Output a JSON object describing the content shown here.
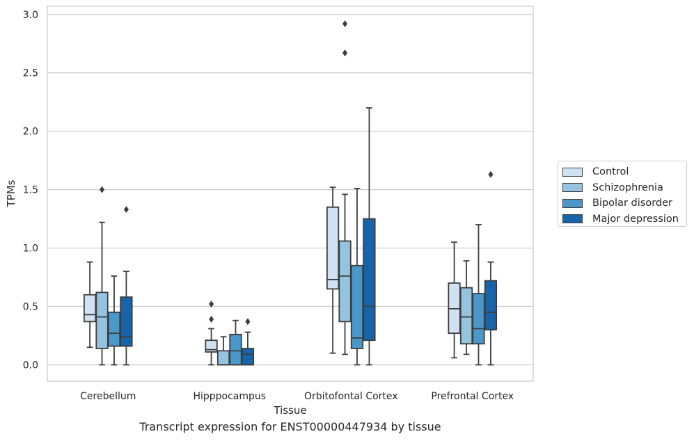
{
  "chart_data": {
    "type": "box",
    "caption": "Transcript expression for ENST00000447934 by tissue",
    "xlabel": "Tissue",
    "ylabel": "TPMs",
    "ylim": [
      -0.14,
      3.07
    ],
    "yticks": [
      "0.0",
      "0.5",
      "1.0",
      "1.5",
      "2.0",
      "2.5",
      "3.0"
    ],
    "grid": "horizontal",
    "legend_position": "right",
    "categories": [
      "Cerebellum",
      "Hipppocampus",
      "Orbitofontal Cortex",
      "Prefrontal Cortex"
    ],
    "series": [
      {
        "name": "Control",
        "color": "#d0e1f2",
        "boxes": [
          {
            "whislo": 0.15,
            "q1": 0.37,
            "med": 0.43,
            "q3": 0.6,
            "whishi": 0.88,
            "fliers": []
          },
          {
            "whislo": 0.0,
            "q1": 0.11,
            "med": 0.13,
            "q3": 0.21,
            "whishi": 0.31,
            "fliers": [
              0.39,
              0.52
            ]
          },
          {
            "whislo": 0.1,
            "q1": 0.65,
            "med": 0.73,
            "q3": 1.35,
            "whishi": 1.52,
            "fliers": []
          },
          {
            "whislo": 0.06,
            "q1": 0.27,
            "med": 0.48,
            "q3": 0.7,
            "whishi": 1.05,
            "fliers": []
          }
        ]
      },
      {
        "name": "Schizophrenia",
        "color": "#94c4df",
        "boxes": [
          {
            "whislo": 0.0,
            "q1": 0.14,
            "med": 0.41,
            "q3": 0.62,
            "whishi": 1.22,
            "fliers": [
              1.5
            ]
          },
          {
            "whislo": 0.0,
            "q1": 0.0,
            "med": 0.0,
            "q3": 0.12,
            "whishi": 0.24,
            "fliers": []
          },
          {
            "whislo": 0.09,
            "q1": 0.37,
            "med": 0.76,
            "q3": 1.06,
            "whishi": 1.46,
            "fliers": [
              2.67,
              2.92
            ]
          },
          {
            "whislo": 0.09,
            "q1": 0.18,
            "med": 0.41,
            "q3": 0.66,
            "whishi": 0.89,
            "fliers": []
          }
        ]
      },
      {
        "name": "Bipolar disorder",
        "color": "#4a98c9",
        "boxes": [
          {
            "whislo": 0.0,
            "q1": 0.16,
            "med": 0.27,
            "q3": 0.45,
            "whishi": 0.76,
            "fliers": []
          },
          {
            "whislo": 0.0,
            "q1": 0.0,
            "med": 0.12,
            "q3": 0.26,
            "whishi": 0.38,
            "fliers": []
          },
          {
            "whislo": 0.0,
            "q1": 0.14,
            "med": 0.23,
            "q3": 0.85,
            "whishi": 1.51,
            "fliers": []
          },
          {
            "whislo": 0.0,
            "q1": 0.18,
            "med": 0.31,
            "q3": 0.61,
            "whishi": 1.2,
            "fliers": []
          }
        ]
      },
      {
        "name": "Major depression",
        "color": "#1764ab",
        "boxes": [
          {
            "whislo": 0.0,
            "q1": 0.16,
            "med": 0.24,
            "q3": 0.58,
            "whishi": 0.8,
            "fliers": [
              1.33
            ]
          },
          {
            "whislo": 0.0,
            "q1": 0.0,
            "med": 0.09,
            "q3": 0.14,
            "whishi": 0.28,
            "fliers": [
              0.37
            ]
          },
          {
            "whislo": 0.0,
            "q1": 0.21,
            "med": 0.5,
            "q3": 1.25,
            "whishi": 2.2,
            "fliers": []
          },
          {
            "whislo": 0.0,
            "q1": 0.3,
            "med": 0.45,
            "q3": 0.72,
            "whishi": 0.88,
            "fliers": [
              1.63
            ]
          }
        ]
      }
    ]
  }
}
